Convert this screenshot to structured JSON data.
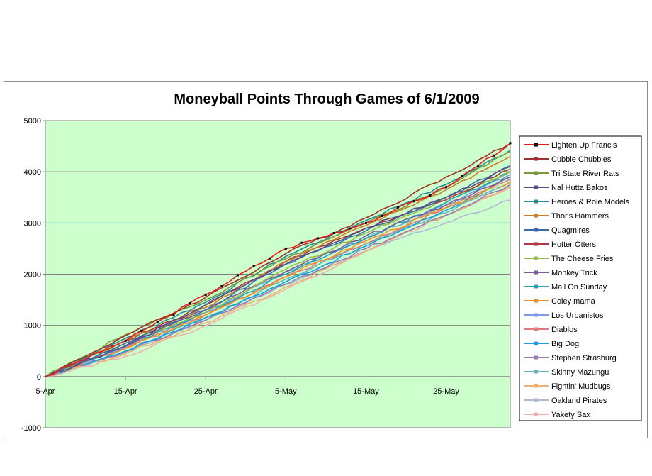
{
  "chart_data": {
    "type": "line",
    "title": "Moneyball Points  Through Games of 6/1/2009",
    "xlabel": "",
    "ylabel": "",
    "x_start": "2009-04-05",
    "x_end": "2009-06-02",
    "x_ticks": [
      {
        "label": "5-Apr",
        "date": "2009-04-05"
      },
      {
        "label": "15-Apr",
        "date": "2009-04-15"
      },
      {
        "label": "25-Apr",
        "date": "2009-04-25"
      },
      {
        "label": "5-May",
        "date": "2009-05-05"
      },
      {
        "label": "15-May",
        "date": "2009-05-15"
      },
      {
        "label": "25-May",
        "date": "2009-05-25"
      }
    ],
    "ylim": [
      -1000,
      5000
    ],
    "y_ticks": [
      "-1000",
      "0",
      "1000",
      "2000",
      "3000",
      "4000",
      "5000"
    ],
    "y_tick_values": [
      -1000,
      0,
      1000,
      2000,
      3000,
      4000,
      5000
    ],
    "plot_background": "#ccffcc",
    "grid": true,
    "legend_position": "right",
    "series": [
      {
        "name": "Lighten Up Francis",
        "color": "#e31a1c",
        "marker_color": "#000000",
        "end": 4560,
        "points": [
          [
            "2009-04-15",
            700
          ],
          [
            "2009-04-25",
            1600
          ],
          [
            "2009-05-05",
            2500
          ],
          [
            "2009-05-15",
            3000
          ],
          [
            "2009-05-25",
            3700
          ],
          [
            "2009-06-02",
            4560
          ]
        ]
      },
      {
        "name": "Cubbie Chubbies",
        "color": "#a0302a",
        "end": 4550,
        "points": [
          [
            "2009-04-15",
            800
          ],
          [
            "2009-04-25",
            1550
          ],
          [
            "2009-05-05",
            2400
          ],
          [
            "2009-05-15",
            3100
          ],
          [
            "2009-05-25",
            3900
          ],
          [
            "2009-06-02",
            4550
          ]
        ]
      },
      {
        "name": "Tri State River Rats",
        "color": "#7a9a3a",
        "end": 4400,
        "points": [
          [
            "2009-04-15",
            820
          ],
          [
            "2009-04-25",
            1500
          ],
          [
            "2009-05-05",
            2300
          ],
          [
            "2009-05-15",
            3000
          ],
          [
            "2009-05-25",
            3700
          ],
          [
            "2009-06-02",
            4400
          ]
        ]
      },
      {
        "name": "Nal Hutta  Bakos",
        "color": "#5a4a8a",
        "end": 4100,
        "points": [
          [
            "2009-04-15",
            600
          ],
          [
            "2009-04-25",
            1400
          ],
          [
            "2009-05-05",
            2200
          ],
          [
            "2009-05-15",
            2900
          ],
          [
            "2009-05-25",
            3500
          ],
          [
            "2009-06-02",
            4100
          ]
        ]
      },
      {
        "name": "Heroes & Role Models",
        "color": "#2a8a9a",
        "end": 4420,
        "points": [
          [
            "2009-04-15",
            750
          ],
          [
            "2009-04-25",
            1450
          ],
          [
            "2009-05-05",
            2350
          ],
          [
            "2009-05-15",
            3050
          ],
          [
            "2009-05-25",
            3750
          ],
          [
            "2009-06-02",
            4420
          ]
        ]
      },
      {
        "name": "Thor's Hammers",
        "color": "#d07a2a",
        "end": 4300,
        "points": [
          [
            "2009-04-15",
            700
          ],
          [
            "2009-04-25",
            1350
          ],
          [
            "2009-05-05",
            2250
          ],
          [
            "2009-05-15",
            2950
          ],
          [
            "2009-05-25",
            3650
          ],
          [
            "2009-06-02",
            4300
          ]
        ]
      },
      {
        "name": "Quagmires",
        "color": "#3a6aaa",
        "end": 4120,
        "points": [
          [
            "2009-04-15",
            650
          ],
          [
            "2009-04-25",
            1300
          ],
          [
            "2009-05-05",
            2200
          ],
          [
            "2009-05-15",
            2850
          ],
          [
            "2009-05-25",
            3500
          ],
          [
            "2009-06-02",
            4120
          ]
        ]
      },
      {
        "name": "Hotter Otters",
        "color": "#b03a3a",
        "end": 4050,
        "points": [
          [
            "2009-04-15",
            700
          ],
          [
            "2009-04-25",
            1400
          ],
          [
            "2009-05-05",
            2250
          ],
          [
            "2009-05-15",
            2900
          ],
          [
            "2009-05-25",
            3450
          ],
          [
            "2009-06-02",
            4050
          ]
        ]
      },
      {
        "name": "The Cheese Fries",
        "color": "#9aba4a",
        "end": 4000,
        "points": [
          [
            "2009-04-15",
            650
          ],
          [
            "2009-04-25",
            1250
          ],
          [
            "2009-05-05",
            2100
          ],
          [
            "2009-05-15",
            2800
          ],
          [
            "2009-05-25",
            3450
          ],
          [
            "2009-06-02",
            4000
          ]
        ]
      },
      {
        "name": "Monkey Trick",
        "color": "#7a5a9a",
        "end": 3900,
        "points": [
          [
            "2009-04-15",
            600
          ],
          [
            "2009-04-25",
            1300
          ],
          [
            "2009-05-05",
            2050
          ],
          [
            "2009-05-15",
            2750
          ],
          [
            "2009-05-25",
            3350
          ],
          [
            "2009-06-02",
            3900
          ]
        ]
      },
      {
        "name": "Mail On Sunday",
        "color": "#2aa0b0",
        "end": 4000,
        "points": [
          [
            "2009-04-15",
            600
          ],
          [
            "2009-04-25",
            1250
          ],
          [
            "2009-05-05",
            2000
          ],
          [
            "2009-05-15",
            2700
          ],
          [
            "2009-05-25",
            3400
          ],
          [
            "2009-06-02",
            4000
          ]
        ]
      },
      {
        "name": "Coley mama",
        "color": "#f0902a",
        "end": 3800,
        "points": [
          [
            "2009-04-15",
            550
          ],
          [
            "2009-04-25",
            1200
          ],
          [
            "2009-05-05",
            1950
          ],
          [
            "2009-05-15",
            2650
          ],
          [
            "2009-05-25",
            3300
          ],
          [
            "2009-06-02",
            3800
          ]
        ]
      },
      {
        "name": "Los Urbanistos",
        "color": "#7a9ae0",
        "end": 3950,
        "points": [
          [
            "2009-04-15",
            580
          ],
          [
            "2009-04-25",
            1250
          ],
          [
            "2009-05-05",
            2050
          ],
          [
            "2009-05-15",
            2700
          ],
          [
            "2009-05-25",
            3350
          ],
          [
            "2009-06-02",
            3950
          ]
        ]
      },
      {
        "name": "Diablos",
        "color": "#e07a7a",
        "end": 3850,
        "points": [
          [
            "2009-04-15",
            560
          ],
          [
            "2009-04-25",
            1200
          ],
          [
            "2009-05-05",
            1950
          ],
          [
            "2009-05-15",
            2600
          ],
          [
            "2009-05-25",
            3300
          ],
          [
            "2009-06-02",
            3850
          ]
        ]
      },
      {
        "name": "Big Dog",
        "color": "#1aa0e0",
        "end": 3900,
        "points": [
          [
            "2009-04-15",
            500
          ],
          [
            "2009-04-25",
            1150
          ],
          [
            "2009-05-05",
            1850
          ],
          [
            "2009-05-15",
            2550
          ],
          [
            "2009-05-25",
            3250
          ],
          [
            "2009-06-02",
            3900
          ]
        ]
      },
      {
        "name": "Stephen Strasburg",
        "color": "#9a7ab0",
        "end": 3750,
        "points": [
          [
            "2009-04-15",
            480
          ],
          [
            "2009-04-25",
            1100
          ],
          [
            "2009-05-05",
            1800
          ],
          [
            "2009-05-15",
            2500
          ],
          [
            "2009-05-25",
            3150
          ],
          [
            "2009-06-02",
            3750
          ]
        ]
      },
      {
        "name": "Skinny Mazungu",
        "color": "#6ab0c0",
        "end": 3800,
        "points": [
          [
            "2009-04-15",
            500
          ],
          [
            "2009-04-25",
            1150
          ],
          [
            "2009-05-05",
            1900
          ],
          [
            "2009-05-15",
            2600
          ],
          [
            "2009-05-25",
            3200
          ],
          [
            "2009-06-02",
            3800
          ]
        ]
      },
      {
        "name": "Fightin' Mudbugs",
        "color": "#f0b070",
        "end": 3700,
        "points": [
          [
            "2009-04-15",
            450
          ],
          [
            "2009-04-25",
            1050
          ],
          [
            "2009-05-05",
            1750
          ],
          [
            "2009-05-15",
            2450
          ],
          [
            "2009-05-25",
            3150
          ],
          [
            "2009-06-02",
            3700
          ]
        ]
      },
      {
        "name": "Oakland Pirates",
        "color": "#b0b8d8",
        "end": 3450,
        "points": [
          [
            "2009-04-15",
            450
          ],
          [
            "2009-04-25",
            1100
          ],
          [
            "2009-05-05",
            1800
          ],
          [
            "2009-05-15",
            2450
          ],
          [
            "2009-05-25",
            3000
          ],
          [
            "2009-06-02",
            3450
          ]
        ]
      },
      {
        "name": "Yakety Sax",
        "color": "#f0b0b0",
        "end": 3700,
        "points": [
          [
            "2009-04-15",
            400
          ],
          [
            "2009-04-25",
            1000
          ],
          [
            "2009-05-05",
            1700
          ],
          [
            "2009-05-15",
            2450
          ],
          [
            "2009-05-25",
            3150
          ],
          [
            "2009-06-02",
            3700
          ]
        ]
      }
    ]
  }
}
